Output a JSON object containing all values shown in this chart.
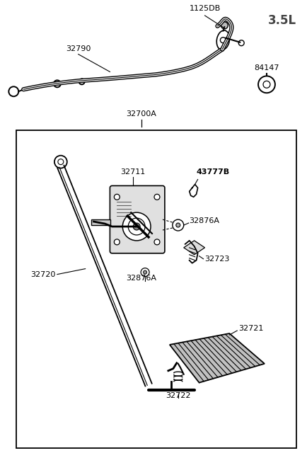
{
  "background_color": "#ffffff",
  "line_color": "#000000",
  "label_35L": "3.5L",
  "label_32700A": "32700A",
  "label_32790": "32790",
  "label_1125DB": "1125DB",
  "label_84147": "84147",
  "label_32711": "32711",
  "label_43777B": "43777B",
  "label_32876A": "32876A",
  "label_32723": "32723",
  "label_32720": "32720",
  "label_32721": "32721",
  "label_32722": "32722",
  "label_32876A_bot": "32876A",
  "figsize": [
    4.34,
    6.47
  ],
  "dpi": 100
}
